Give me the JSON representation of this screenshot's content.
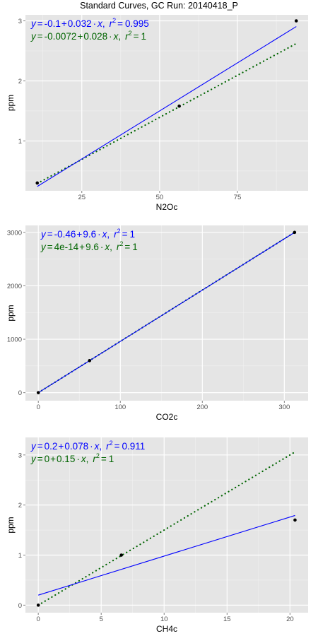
{
  "title": "Standard Curves, GC Run: 20140418_P",
  "colors": {
    "panel_bg": "#e5e5e5",
    "grid": "#ffffff",
    "fit_line": "#0000ff",
    "ref_line": "#006400",
    "points": "#000000"
  },
  "chart_data": [
    {
      "type": "scatter",
      "xlabel": "N2Oc",
      "ylabel": "ppm",
      "xlim": [
        6.9,
        97.7
      ],
      "ylim": [
        0.17,
        3.1
      ],
      "xticks": [
        25,
        50,
        75
      ],
      "yticks": [
        1,
        2,
        3
      ],
      "points": [
        {
          "x": 10.7,
          "y": 0.3
        },
        {
          "x": 56.3,
          "y": 1.58
        },
        {
          "x": 93.9,
          "y": 3.0
        }
      ],
      "fit_line": {
        "intercept": -0.1,
        "slope": 0.032,
        "style": "solid",
        "color": "#0000ff",
        "x_range": [
          10.7,
          93.9
        ]
      },
      "ref_line": {
        "intercept": -0.0072,
        "slope": 0.028,
        "style": "dotted",
        "color": "#006400",
        "x_range": [
          10.7,
          93.9
        ]
      },
      "equations": [
        {
          "color": "#0000ff",
          "y": "y",
          "eq": "=",
          "intercept": "-0.1",
          "plus": "+",
          "slope": "0.032",
          "dot": "·",
          "x": "x",
          "r": "r",
          "two": "2",
          "r2": "0.995"
        },
        {
          "color": "#006400",
          "y": "y",
          "eq": "=",
          "intercept": "-0.0072",
          "plus": "+",
          "slope": "0.028",
          "dot": "·",
          "x": "x",
          "r": "r",
          "two": "2",
          "r2": "1"
        }
      ]
    },
    {
      "type": "scatter",
      "xlabel": "CO2c",
      "ylabel": "ppm",
      "xlim": [
        -15.7,
        329
      ],
      "ylim": [
        -150,
        3130
      ],
      "xticks": [
        0,
        100,
        200,
        300
      ],
      "yticks": [
        0,
        1000,
        2000,
        3000
      ],
      "points": [
        {
          "x": 0,
          "y": 0
        },
        {
          "x": 62.5,
          "y": 600
        },
        {
          "x": 312.5,
          "y": 3000
        }
      ],
      "fit_line": {
        "intercept": -0.46,
        "slope": 9.6,
        "style": "solid",
        "color": "#0000ff",
        "x_range": [
          0,
          312.5
        ]
      },
      "ref_line": {
        "intercept": 0,
        "slope": 9.6,
        "style": "dotted",
        "color": "#006400",
        "x_range": [
          0,
          312.5
        ]
      },
      "equations": [
        {
          "color": "#0000ff",
          "y": "y",
          "eq": "=",
          "intercept": "-0.46",
          "plus": "+",
          "slope": "9.6",
          "dot": "·",
          "x": "x",
          "r": "r",
          "two": "2",
          "r2": "1"
        },
        {
          "color": "#006400",
          "y": "y",
          "eq": "=",
          "intercept": "4e-14",
          "plus": "+",
          "slope": "9.6",
          "dot": "·",
          "x": "x",
          "r": "r",
          "two": "2",
          "r2": "1"
        }
      ]
    },
    {
      "type": "scatter",
      "xlabel": "CH4c",
      "ylabel": "ppm",
      "xlim": [
        -1.02,
        21.44
      ],
      "ylim": [
        -0.15,
        3.35
      ],
      "xticks": [
        0,
        5,
        10,
        15,
        20
      ],
      "yticks": [
        0,
        1,
        2,
        3
      ],
      "points": [
        {
          "x": 0,
          "y": 0
        },
        {
          "x": 6.6,
          "y": 1.0
        },
        {
          "x": 20.4,
          "y": 1.7
        }
      ],
      "fit_line": {
        "intercept": 0.2,
        "slope": 0.078,
        "style": "solid",
        "color": "#0000ff",
        "x_range": [
          0,
          20.4
        ]
      },
      "ref_line": {
        "intercept": 0,
        "slope": 0.15,
        "style": "dotted",
        "color": "#006400",
        "x_range": [
          0,
          20.4
        ]
      },
      "equations": [
        {
          "color": "#0000ff",
          "y": "y",
          "eq": "=",
          "intercept": "0.2",
          "plus": "+",
          "slope": "0.078",
          "dot": "·",
          "x": "x",
          "r": "r",
          "two": "2",
          "r2": "0.911"
        },
        {
          "color": "#006400",
          "y": "y",
          "eq": "=",
          "intercept": "0",
          "plus": "+",
          "slope": "0.15",
          "dot": "·",
          "x": "x",
          "r": "r",
          "two": "2",
          "r2": "1"
        }
      ]
    }
  ]
}
